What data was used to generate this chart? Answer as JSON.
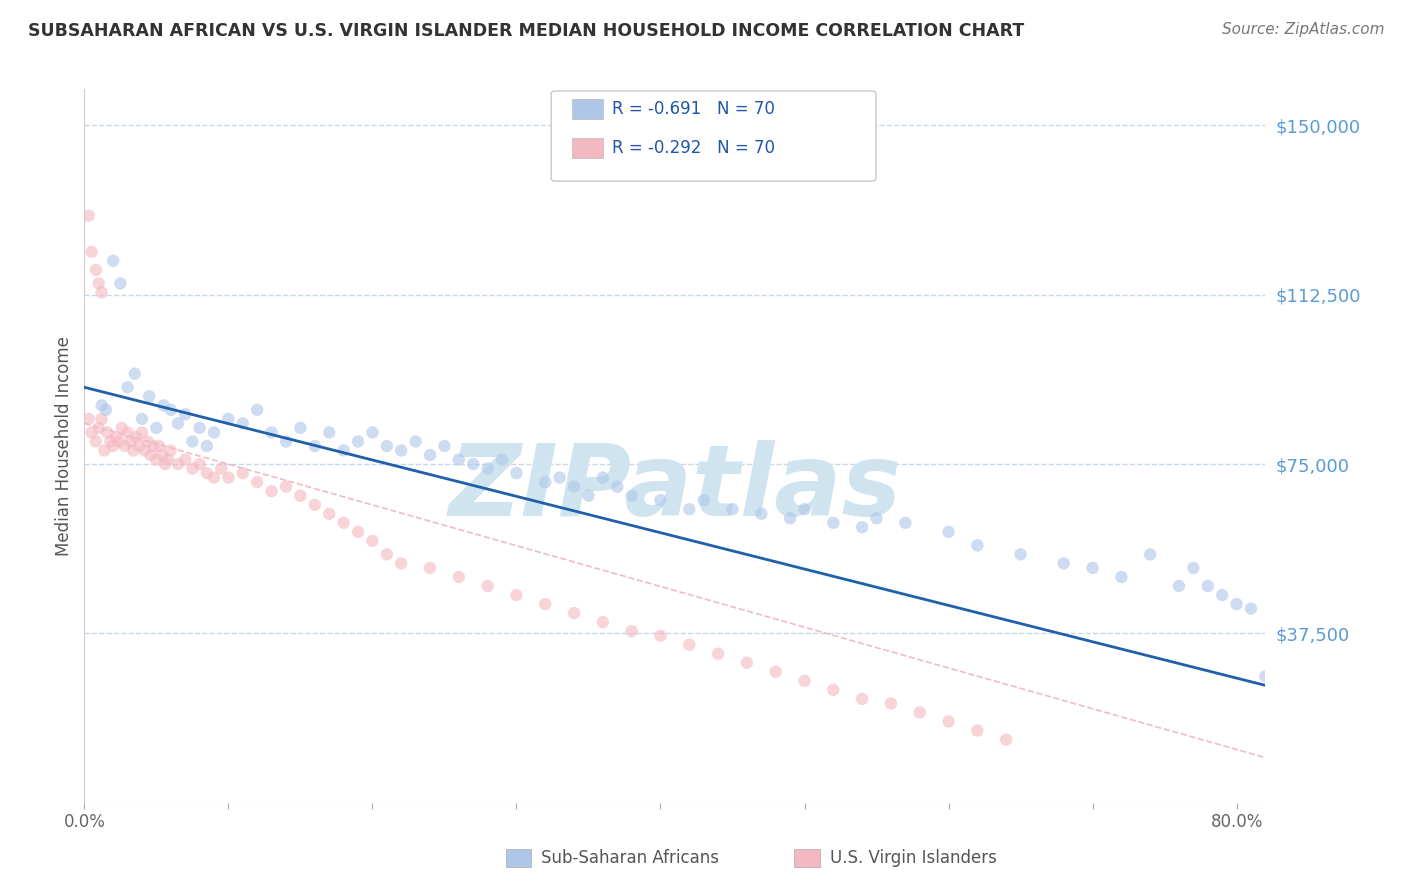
{
  "title": "SUBSAHARAN AFRICAN VS U.S. VIRGIN ISLANDER MEDIAN HOUSEHOLD INCOME CORRELATION CHART",
  "source": "Source: ZipAtlas.com",
  "ylabel": "Median Household Income",
  "yticks": [
    0,
    37500,
    75000,
    112500,
    150000
  ],
  "ytick_labels": [
    "",
    "$37,500",
    "$75,000",
    "$112,500",
    "$150,000"
  ],
  "xticks": [
    0,
    10,
    20,
    30,
    40,
    50,
    60,
    70,
    80
  ],
  "xtick_labels": [
    "0.0%",
    "",
    "",
    "",
    "",
    "",
    "",
    "",
    "80.0%"
  ],
  "xlim": [
    0.0,
    82.0
  ],
  "ylim": [
    0,
    158000
  ],
  "legend_entries": [
    {
      "label": "R = -0.691   N = 70",
      "color": "#aec6e8"
    },
    {
      "label": "R = -0.292   N = 70",
      "color": "#f4b8c1"
    }
  ],
  "legend_bottom_labels": [
    "Sub-Saharan Africans",
    "U.S. Virgin Islanders"
  ],
  "legend_bottom_colors": [
    "#aec6e8",
    "#f4b8c1"
  ],
  "watermark": "ZIPatlas",
  "blue_scatter_x": [
    1.2,
    1.5,
    2.0,
    2.5,
    3.0,
    3.5,
    4.0,
    4.5,
    5.0,
    5.5,
    6.0,
    6.5,
    7.0,
    7.5,
    8.0,
    8.5,
    9.0,
    10.0,
    11.0,
    12.0,
    13.0,
    14.0,
    15.0,
    16.0,
    17.0,
    18.0,
    19.0,
    20.0,
    21.0,
    22.0,
    23.0,
    24.0,
    25.0,
    26.0,
    27.0,
    28.0,
    29.0,
    30.0,
    32.0,
    33.0,
    34.0,
    35.0,
    36.0,
    37.0,
    38.0,
    40.0,
    42.0,
    43.0,
    45.0,
    47.0,
    49.0,
    50.0,
    52.0,
    54.0,
    55.0,
    57.0,
    60.0,
    62.0,
    65.0,
    68.0,
    70.0,
    72.0,
    74.0,
    76.0,
    77.0,
    78.0,
    79.0,
    80.0,
    81.0,
    82.0
  ],
  "blue_scatter_y": [
    88000,
    87000,
    120000,
    115000,
    92000,
    95000,
    85000,
    90000,
    83000,
    88000,
    87000,
    84000,
    86000,
    80000,
    83000,
    79000,
    82000,
    85000,
    84000,
    87000,
    82000,
    80000,
    83000,
    79000,
    82000,
    78000,
    80000,
    82000,
    79000,
    78000,
    80000,
    77000,
    79000,
    76000,
    75000,
    74000,
    76000,
    73000,
    71000,
    72000,
    70000,
    68000,
    72000,
    70000,
    68000,
    67000,
    65000,
    67000,
    65000,
    64000,
    63000,
    65000,
    62000,
    61000,
    63000,
    62000,
    60000,
    57000,
    55000,
    53000,
    52000,
    50000,
    55000,
    48000,
    52000,
    48000,
    46000,
    44000,
    43000,
    28000
  ],
  "pink_scatter_x": [
    0.3,
    0.5,
    0.8,
    1.0,
    1.2,
    1.4,
    1.6,
    1.8,
    2.0,
    2.2,
    2.4,
    2.6,
    2.8,
    3.0,
    3.2,
    3.4,
    3.6,
    3.8,
    4.0,
    4.2,
    4.4,
    4.6,
    4.8,
    5.0,
    5.2,
    5.4,
    5.6,
    5.8,
    6.0,
    6.5,
    7.0,
    7.5,
    8.0,
    8.5,
    9.0,
    9.5,
    10.0,
    11.0,
    12.0,
    13.0,
    14.0,
    15.0,
    16.0,
    17.0,
    18.0,
    19.0,
    20.0,
    21.0,
    22.0,
    24.0,
    26.0,
    28.0,
    30.0,
    32.0,
    34.0,
    36.0,
    38.0,
    40.0,
    42.0,
    44.0,
    46.0,
    48.0,
    50.0,
    52.0,
    54.0,
    56.0,
    58.0,
    60.0,
    62.0,
    64.0
  ],
  "pink_scatter_y": [
    85000,
    82000,
    80000,
    83000,
    85000,
    78000,
    82000,
    80000,
    79000,
    81000,
    80000,
    83000,
    79000,
    82000,
    80000,
    78000,
    81000,
    79000,
    82000,
    78000,
    80000,
    77000,
    79000,
    76000,
    79000,
    77000,
    75000,
    76000,
    78000,
    75000,
    76000,
    74000,
    75000,
    73000,
    72000,
    74000,
    72000,
    73000,
    71000,
    69000,
    70000,
    68000,
    66000,
    64000,
    62000,
    60000,
    58000,
    55000,
    53000,
    52000,
    50000,
    48000,
    46000,
    44000,
    42000,
    40000,
    38000,
    37000,
    35000,
    33000,
    31000,
    29000,
    27000,
    25000,
    23000,
    22000,
    20000,
    18000,
    16000,
    14000
  ],
  "pink_high_x": [
    0.3,
    0.5,
    0.8,
    1.0,
    1.2
  ],
  "pink_high_y": [
    130000,
    122000,
    118000,
    115000,
    113000
  ],
  "blue_line_x": [
    0,
    82
  ],
  "blue_line_y": [
    92000,
    26000
  ],
  "pink_line_x": [
    0,
    82
  ],
  "pink_line_y": [
    84000,
    10000
  ],
  "background_color": "#ffffff",
  "grid_color": "#c8d8e8",
  "scatter_alpha": 0.6,
  "scatter_size": 80,
  "title_color": "#333333",
  "axis_color": "#5b9bd5",
  "watermark_color": "#d0e4f0",
  "legend_border_color": "#cccccc"
}
